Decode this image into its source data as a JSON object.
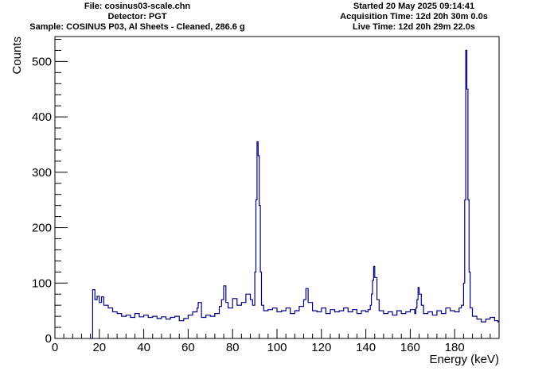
{
  "header": {
    "file": "File: cosinus03-scale.chn",
    "detector": "Detector: PGT",
    "sample": "Sample: COSINUS P03, Al Sheets - Cleaned, 286.6 g",
    "started": "Started 20 May 2025 09:14:41",
    "acquisition_time": "Acquisition Time: 12d 20h 30m 0.0s",
    "live_time": "Live Time: 12d 20h 29m 22.0s"
  },
  "chart_data": {
    "type": "line",
    "title": "",
    "xlabel": "Energy (keV)",
    "ylabel": "Counts",
    "xlim": [
      0,
      200
    ],
    "ylim": [
      0,
      545
    ],
    "xticks": [
      0,
      20,
      40,
      60,
      80,
      100,
      120,
      140,
      160,
      180
    ],
    "yticks": [
      0,
      100,
      200,
      300,
      400,
      500
    ],
    "line_color": "#000080",
    "grid": false,
    "series": [
      {
        "name": "",
        "x": [
          16.5,
          17,
          18,
          19,
          20,
          21,
          22,
          24,
          26,
          28,
          30,
          32,
          34,
          36,
          38,
          40,
          42,
          44,
          46,
          48,
          50,
          52,
          54,
          56,
          58,
          60,
          62,
          64,
          64.5,
          66,
          68,
          70,
          72,
          74,
          75,
          76,
          77,
          78,
          80,
          82,
          84,
          86,
          88,
          89,
          90,
          90.5,
          91,
          91.5,
          92,
          92.5,
          93,
          94,
          96,
          98,
          100,
          102,
          104,
          106,
          108,
          110,
          112,
          113,
          114,
          116,
          118,
          120,
          122,
          124,
          126,
          128,
          130,
          132,
          134,
          136,
          138,
          140,
          141,
          142,
          142.5,
          143,
          143.5,
          144,
          145,
          146,
          148,
          150,
          152,
          154,
          156,
          158,
          160,
          162,
          162.5,
          163,
          163.5,
          164,
          165,
          166,
          168,
          170,
          172,
          174,
          176,
          178,
          180,
          182,
          183,
          184,
          184.5,
          185,
          185.5,
          186,
          186.5,
          187,
          188,
          190,
          192,
          194,
          196,
          198,
          199.5
        ],
        "y": [
          0,
          88,
          70,
          76,
          65,
          75,
          60,
          55,
          48,
          45,
          40,
          42,
          38,
          45,
          39,
          42,
          38,
          40,
          36,
          39,
          35,
          38,
          40,
          32,
          36,
          42,
          48,
          55,
          65,
          38,
          42,
          40,
          45,
          58,
          70,
          95,
          65,
          55,
          72,
          60,
          65,
          80,
          70,
          60,
          120,
          250,
          355,
          330,
          240,
          120,
          60,
          50,
          52,
          55,
          48,
          50,
          55,
          45,
          50,
          58,
          70,
          90,
          65,
          50,
          48,
          55,
          45,
          52,
          48,
          50,
          55,
          48,
          52,
          45,
          50,
          48,
          52,
          60,
          80,
          105,
          130,
          110,
          70,
          50,
          45,
          48,
          42,
          50,
          45,
          48,
          52,
          45,
          55,
          70,
          92,
          80,
          60,
          45,
          48,
          42,
          50,
          45,
          55,
          50,
          48,
          55,
          60,
          100,
          250,
          520,
          450,
          250,
          120,
          55,
          40,
          35,
          30,
          35,
          38,
          32,
          30
        ]
      }
    ]
  }
}
